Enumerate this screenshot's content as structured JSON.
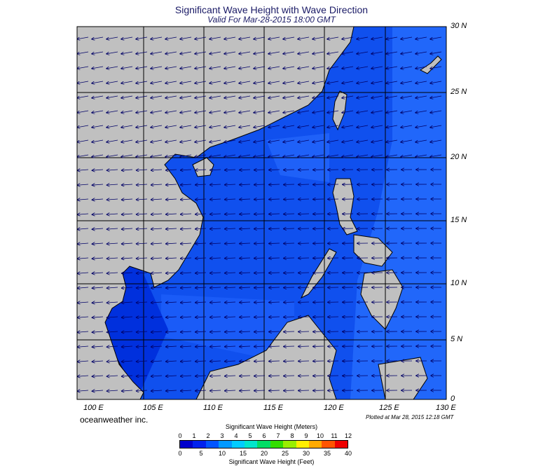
{
  "title": "Significant Wave Height with Wave Direction",
  "subtitle": "Valid For Mar-28-2015 18:00 GMT",
  "credit": "oceanweather inc.",
  "plotted": "Plotted at Mar 28, 2015 12:18 GMT",
  "colors": {
    "land": "#c0c0c0",
    "ocean_dark": "#0033dd",
    "ocean_mid": "#1050ee",
    "ocean_light": "#2a7bff",
    "arrows": "#000066"
  },
  "lon_labels": [
    "100 E",
    "105 E",
    "110 E",
    "115 E",
    "120 E",
    "125 E",
    "130 E"
  ],
  "lat_labels": [
    "30 N",
    "25 N",
    "20 N",
    "15 N",
    "10 N",
    "5 N",
    "0"
  ],
  "legend": {
    "meters_title": "Significant Wave Height (Meters)",
    "feet_title": "Significant Wave Height (Feet)",
    "meters_ticks": [
      "0",
      "1",
      "2",
      "3",
      "4",
      "5",
      "6",
      "7",
      "8",
      "9",
      "10",
      "11",
      "12"
    ],
    "feet_ticks": [
      "0",
      "5",
      "10",
      "15",
      "20",
      "25",
      "30",
      "35",
      "40"
    ],
    "colors": [
      "#0000cc",
      "#0022ee",
      "#0055ff",
      "#0099ff",
      "#00ccff",
      "#00e6cc",
      "#00dd66",
      "#33dd00",
      "#99ee00",
      "#ffee00",
      "#ffaa00",
      "#ff5500",
      "#ee0000"
    ]
  }
}
